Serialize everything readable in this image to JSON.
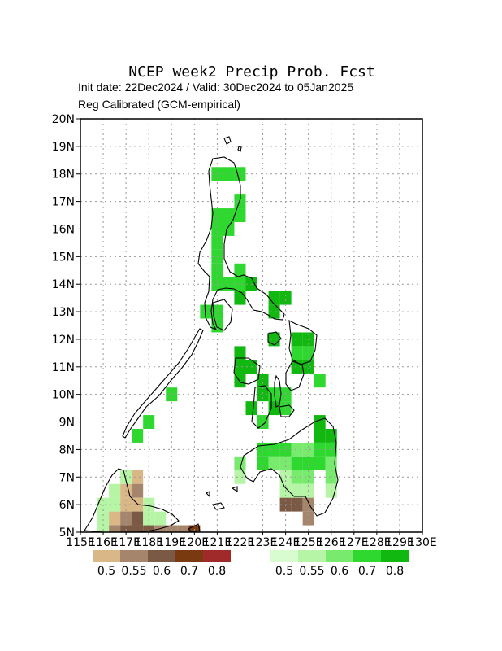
{
  "title": "NCEP week2 Precip Prob. Fcst",
  "subtitle1": "Init date: 22Dec2024 / Valid: 30Dec2024 to 05Jan2025",
  "subtitle2": "Reg Calibrated (GCM-empirical)",
  "lat_labels": [
    "5N",
    "6N",
    "7N",
    "8N",
    "9N",
    "10N",
    "11N",
    "12N",
    "13N",
    "14N",
    "15N",
    "16N",
    "17N",
    "18N",
    "19N",
    "20N"
  ],
  "lon_labels": [
    "115E",
    "116E",
    "117E",
    "118E",
    "119E",
    "120E",
    "121E",
    "122E",
    "123E",
    "124E",
    "125E",
    "126E",
    "127E",
    "128E",
    "129E",
    "130E"
  ],
  "map_extent": {
    "lon": [
      115,
      130
    ],
    "lat": [
      5,
      20
    ]
  },
  "grid": "dotted",
  "colors": {
    "below": [
      "#d9b787",
      "#a5866c",
      "#7a5a44",
      "#7a3a10",
      "#a02a2a"
    ],
    "above": [
      "#d8fbd0",
      "#b5f5a5",
      "#78ea6e",
      "#2fd82f",
      "#10b810"
    ]
  },
  "legend_below_labels": [
    "0.5",
    "0.55",
    "0.6",
    "0.7",
    "0.8"
  ],
  "legend_above_labels": [
    "0.5",
    "0.55",
    "0.6",
    "0.7",
    "0.8"
  ],
  "cells": [
    {
      "lon": 121.0,
      "lat": 18.0,
      "c": "a3"
    },
    {
      "lon": 121.5,
      "lat": 18.0,
      "c": "a3"
    },
    {
      "lon": 122.0,
      "lat": 18.0,
      "c": "a3"
    },
    {
      "lon": 122.0,
      "lat": 17.0,
      "c": "a3"
    },
    {
      "lon": 122.0,
      "lat": 16.5,
      "c": "a3"
    },
    {
      "lon": 121.0,
      "lat": 16.5,
      "c": "a3"
    },
    {
      "lon": 121.5,
      "lat": 16.5,
      "c": "a3"
    },
    {
      "lon": 121.0,
      "lat": 16.0,
      "c": "a3"
    },
    {
      "lon": 121.5,
      "lat": 16.0,
      "c": "a3"
    },
    {
      "lon": 121.0,
      "lat": 15.5,
      "c": "a3"
    },
    {
      "lon": 121.0,
      "lat": 15.0,
      "c": "a3"
    },
    {
      "lon": 121.0,
      "lat": 14.5,
      "c": "a3"
    },
    {
      "lon": 121.0,
      "lat": 14.0,
      "c": "a3"
    },
    {
      "lon": 121.5,
      "lat": 14.0,
      "c": "a3"
    },
    {
      "lon": 122.0,
      "lat": 14.5,
      "c": "a3"
    },
    {
      "lon": 122.0,
      "lat": 14.0,
      "c": "a3"
    },
    {
      "lon": 122.0,
      "lat": 13.5,
      "c": "a4"
    },
    {
      "lon": 122.5,
      "lat": 14.0,
      "c": "a4"
    },
    {
      "lon": 120.5,
      "lat": 13.0,
      "c": "a3"
    },
    {
      "lon": 121.0,
      "lat": 13.0,
      "c": "a3"
    },
    {
      "lon": 121.0,
      "lat": 12.5,
      "c": "a3"
    },
    {
      "lon": 123.5,
      "lat": 13.5,
      "c": "a4"
    },
    {
      "lon": 124.0,
      "lat": 13.5,
      "c": "a4"
    },
    {
      "lon": 123.5,
      "lat": 13.0,
      "c": "a4"
    },
    {
      "lon": 123.5,
      "lat": 12.0,
      "c": "a4"
    },
    {
      "lon": 124.5,
      "lat": 12.0,
      "c": "a4"
    },
    {
      "lon": 125.0,
      "lat": 12.0,
      "c": "a4"
    },
    {
      "lon": 124.5,
      "lat": 11.5,
      "c": "a3"
    },
    {
      "lon": 125.0,
      "lat": 11.5,
      "c": "a3"
    },
    {
      "lon": 124.5,
      "lat": 11.0,
      "c": "a4"
    },
    {
      "lon": 125.0,
      "lat": 11.0,
      "c": "a4"
    },
    {
      "lon": 125.5,
      "lat": 10.5,
      "c": "a3"
    },
    {
      "lon": 122.0,
      "lat": 11.5,
      "c": "a4"
    },
    {
      "lon": 122.0,
      "lat": 11.0,
      "c": "a4"
    },
    {
      "lon": 122.5,
      "lat": 11.0,
      "c": "a4"
    },
    {
      "lon": 122.0,
      "lat": 10.5,
      "c": "a4"
    },
    {
      "lon": 123.0,
      "lat": 10.5,
      "c": "a4"
    },
    {
      "lon": 123.0,
      "lat": 10.0,
      "c": "a4"
    },
    {
      "lon": 123.5,
      "lat": 10.0,
      "c": "a3"
    },
    {
      "lon": 124.0,
      "lat": 10.0,
      "c": "a3"
    },
    {
      "lon": 122.5,
      "lat": 9.5,
      "c": "a4"
    },
    {
      "lon": 123.5,
      "lat": 9.5,
      "c": "a4"
    },
    {
      "lon": 124.0,
      "lat": 9.5,
      "c": "a3"
    },
    {
      "lon": 123.0,
      "lat": 9.0,
      "c": "a3"
    },
    {
      "lon": 125.5,
      "lat": 9.0,
      "c": "a4"
    },
    {
      "lon": 125.5,
      "lat": 8.5,
      "c": "a4"
    },
    {
      "lon": 126.0,
      "lat": 8.5,
      "c": "a4"
    },
    {
      "lon": 123.0,
      "lat": 8.0,
      "c": "a3"
    },
    {
      "lon": 123.5,
      "lat": 8.0,
      "c": "a3"
    },
    {
      "lon": 124.0,
      "lat": 8.0,
      "c": "a3"
    },
    {
      "lon": 124.5,
      "lat": 8.0,
      "c": "a2"
    },
    {
      "lon": 125.0,
      "lat": 8.0,
      "c": "a2"
    },
    {
      "lon": 125.5,
      "lat": 8.0,
      "c": "a3"
    },
    {
      "lon": 126.0,
      "lat": 8.0,
      "c": "a3"
    },
    {
      "lon": 122.0,
      "lat": 7.5,
      "c": "a2"
    },
    {
      "lon": 123.0,
      "lat": 7.5,
      "c": "a3"
    },
    {
      "lon": 123.5,
      "lat": 7.5,
      "c": "a2"
    },
    {
      "lon": 124.0,
      "lat": 7.5,
      "c": "a2"
    },
    {
      "lon": 124.5,
      "lat": 7.5,
      "c": "a3"
    },
    {
      "lon": 125.0,
      "lat": 7.5,
      "c": "a3"
    },
    {
      "lon": 125.5,
      "lat": 7.5,
      "c": "a3"
    },
    {
      "lon": 126.0,
      "lat": 7.5,
      "c": "a2"
    },
    {
      "lon": 122.0,
      "lat": 7.0,
      "c": "a1"
    },
    {
      "lon": 124.0,
      "lat": 7.0,
      "c": "a1"
    },
    {
      "lon": 124.5,
      "lat": 7.0,
      "c": "a2"
    },
    {
      "lon": 125.0,
      "lat": 7.0,
      "c": "a2"
    },
    {
      "lon": 126.0,
      "lat": 7.0,
      "c": "a2"
    },
    {
      "lon": 124.0,
      "lat": 6.5,
      "c": "a1"
    },
    {
      "lon": 124.5,
      "lat": 6.5,
      "c": "a1"
    },
    {
      "lon": 125.0,
      "lat": 6.5,
      "c": "a1"
    },
    {
      "lon": 126.0,
      "lat": 6.5,
      "c": "a1"
    },
    {
      "lon": 119.0,
      "lat": 10.0,
      "c": "a3"
    },
    {
      "lon": 118.0,
      "lat": 9.0,
      "c": "a3"
    },
    {
      "lon": 117.5,
      "lat": 8.5,
      "c": "a3"
    },
    {
      "lon": 124.0,
      "lat": 6.0,
      "c": "b2"
    },
    {
      "lon": 124.5,
      "lat": 6.0,
      "c": "b2"
    },
    {
      "lon": 125.0,
      "lat": 6.0,
      "c": "b1"
    },
    {
      "lon": 125.0,
      "lat": 5.5,
      "c": "b1"
    },
    {
      "lon": 117.5,
      "lat": 7.0,
      "c": "b0"
    },
    {
      "lon": 117.0,
      "lat": 6.5,
      "c": "b0"
    },
    {
      "lon": 117.5,
      "lat": 6.5,
      "c": "b1"
    },
    {
      "lon": 117.0,
      "lat": 6.0,
      "c": "b0"
    },
    {
      "lon": 117.5,
      "lat": 6.0,
      "c": "b0"
    },
    {
      "lon": 116.5,
      "lat": 5.5,
      "c": "b0"
    },
    {
      "lon": 117.0,
      "lat": 5.5,
      "c": "b1"
    },
    {
      "lon": 117.5,
      "lat": 5.5,
      "c": "b2"
    },
    {
      "lon": 116.5,
      "lat": 5.0,
      "c": "b1"
    },
    {
      "lon": 117.0,
      "lat": 5.0,
      "c": "b2"
    },
    {
      "lon": 117.5,
      "lat": 5.0,
      "c": "b2"
    },
    {
      "lon": 118.0,
      "lat": 5.0,
      "c": "b2"
    },
    {
      "lon": 118.5,
      "lat": 5.0,
      "c": "b1"
    },
    {
      "lon": 119.0,
      "lat": 5.0,
      "c": "b1"
    },
    {
      "lon": 119.5,
      "lat": 5.0,
      "c": "b1"
    },
    {
      "lon": 120.0,
      "lat": 5.0,
      "c": "b3"
    },
    {
      "lon": 116.0,
      "lat": 5.5,
      "c": "a1"
    },
    {
      "lon": 116.0,
      "lat": 5.0,
      "c": "a1"
    },
    {
      "lon": 116.5,
      "lat": 6.0,
      "c": "a1"
    },
    {
      "lon": 116.5,
      "lat": 6.5,
      "c": "a1"
    },
    {
      "lon": 117.0,
      "lat": 7.0,
      "c": "a1"
    },
    {
      "lon": 118.0,
      "lat": 5.5,
      "c": "a1"
    },
    {
      "lon": 118.5,
      "lat": 5.5,
      "c": "a1"
    },
    {
      "lon": 118.0,
      "lat": 6.0,
      "c": "a1"
    },
    {
      "lon": 116.0,
      "lat": 6.0,
      "c": "a1"
    }
  ]
}
